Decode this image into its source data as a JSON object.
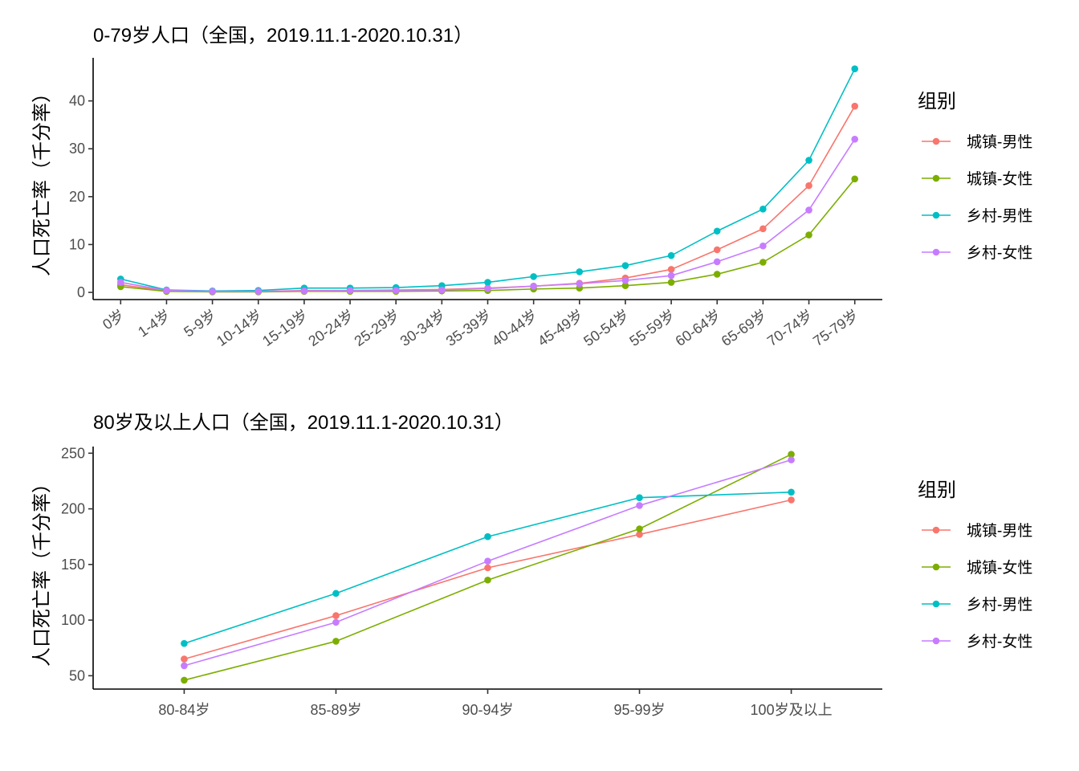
{
  "chart_data": [
    {
      "type": "line",
      "title": "0-79岁人口（全国，2019.11.1-2020.10.31）",
      "xlabel": "",
      "ylabel": "人口死亡率（千分率）",
      "categories": [
        "0岁",
        "1-4岁",
        "5-9岁",
        "10-14岁",
        "15-19岁",
        "20-24岁",
        "25-29岁",
        "30-34岁",
        "35-39岁",
        "40-44岁",
        "45-49岁",
        "50-54岁",
        "55-59岁",
        "60-64岁",
        "65-69岁",
        "70-74岁",
        "75-79岁"
      ],
      "ylim": [
        -1.5,
        49
      ],
      "yticks": [
        0,
        10,
        20,
        30,
        40
      ],
      "grid": false,
      "legend_position": "right",
      "legend_title": "组别",
      "series": [
        {
          "name": "城镇-男性",
          "color": "#F8766D",
          "values": [
            1.6,
            0.3,
            0.2,
            0.2,
            0.4,
            0.4,
            0.5,
            0.6,
            0.9,
            1.3,
            1.9,
            3.0,
            4.8,
            8.9,
            13.3,
            22.3,
            38.9
          ]
        },
        {
          "name": "城镇-女性",
          "color": "#7CAE00",
          "values": [
            1.2,
            0.2,
            0.1,
            0.1,
            0.2,
            0.2,
            0.2,
            0.3,
            0.4,
            0.7,
            0.9,
            1.4,
            2.1,
            3.8,
            6.3,
            12.0,
            23.7
          ]
        },
        {
          "name": "乡村-男性",
          "color": "#00BFC4",
          "values": [
            2.8,
            0.5,
            0.3,
            0.4,
            0.9,
            0.9,
            1.0,
            1.4,
            2.1,
            3.3,
            4.3,
            5.6,
            7.7,
            12.8,
            17.4,
            27.6,
            46.7
          ]
        },
        {
          "name": "乡村-女性",
          "color": "#C77CFF",
          "values": [
            2.1,
            0.4,
            0.2,
            0.2,
            0.3,
            0.4,
            0.4,
            0.5,
            0.8,
            1.3,
            1.8,
            2.5,
            3.5,
            6.4,
            9.7,
            17.2,
            32.0
          ]
        }
      ]
    },
    {
      "type": "line",
      "title": "80岁及以上人口（全国，2019.11.1-2020.10.31）",
      "xlabel": "",
      "ylabel": "人口死亡率（千分率）",
      "categories": [
        "80-84岁",
        "85-89岁",
        "90-94岁",
        "95-99岁",
        "100岁及以上"
      ],
      "ylim": [
        38,
        256
      ],
      "yticks": [
        50,
        100,
        150,
        200,
        250
      ],
      "grid": false,
      "legend_position": "right",
      "legend_title": "组别",
      "series": [
        {
          "name": "城镇-男性",
          "color": "#F8766D",
          "values": [
            65,
            104,
            147,
            177,
            208
          ]
        },
        {
          "name": "城镇-女性",
          "color": "#7CAE00",
          "values": [
            46,
            81,
            136,
            182,
            249
          ]
        },
        {
          "name": "乡村-男性",
          "color": "#00BFC4",
          "values": [
            79,
            124,
            175,
            210,
            215
          ]
        },
        {
          "name": "乡村-女性",
          "color": "#C77CFF",
          "values": [
            59,
            98,
            153,
            203,
            244
          ]
        }
      ]
    }
  ]
}
